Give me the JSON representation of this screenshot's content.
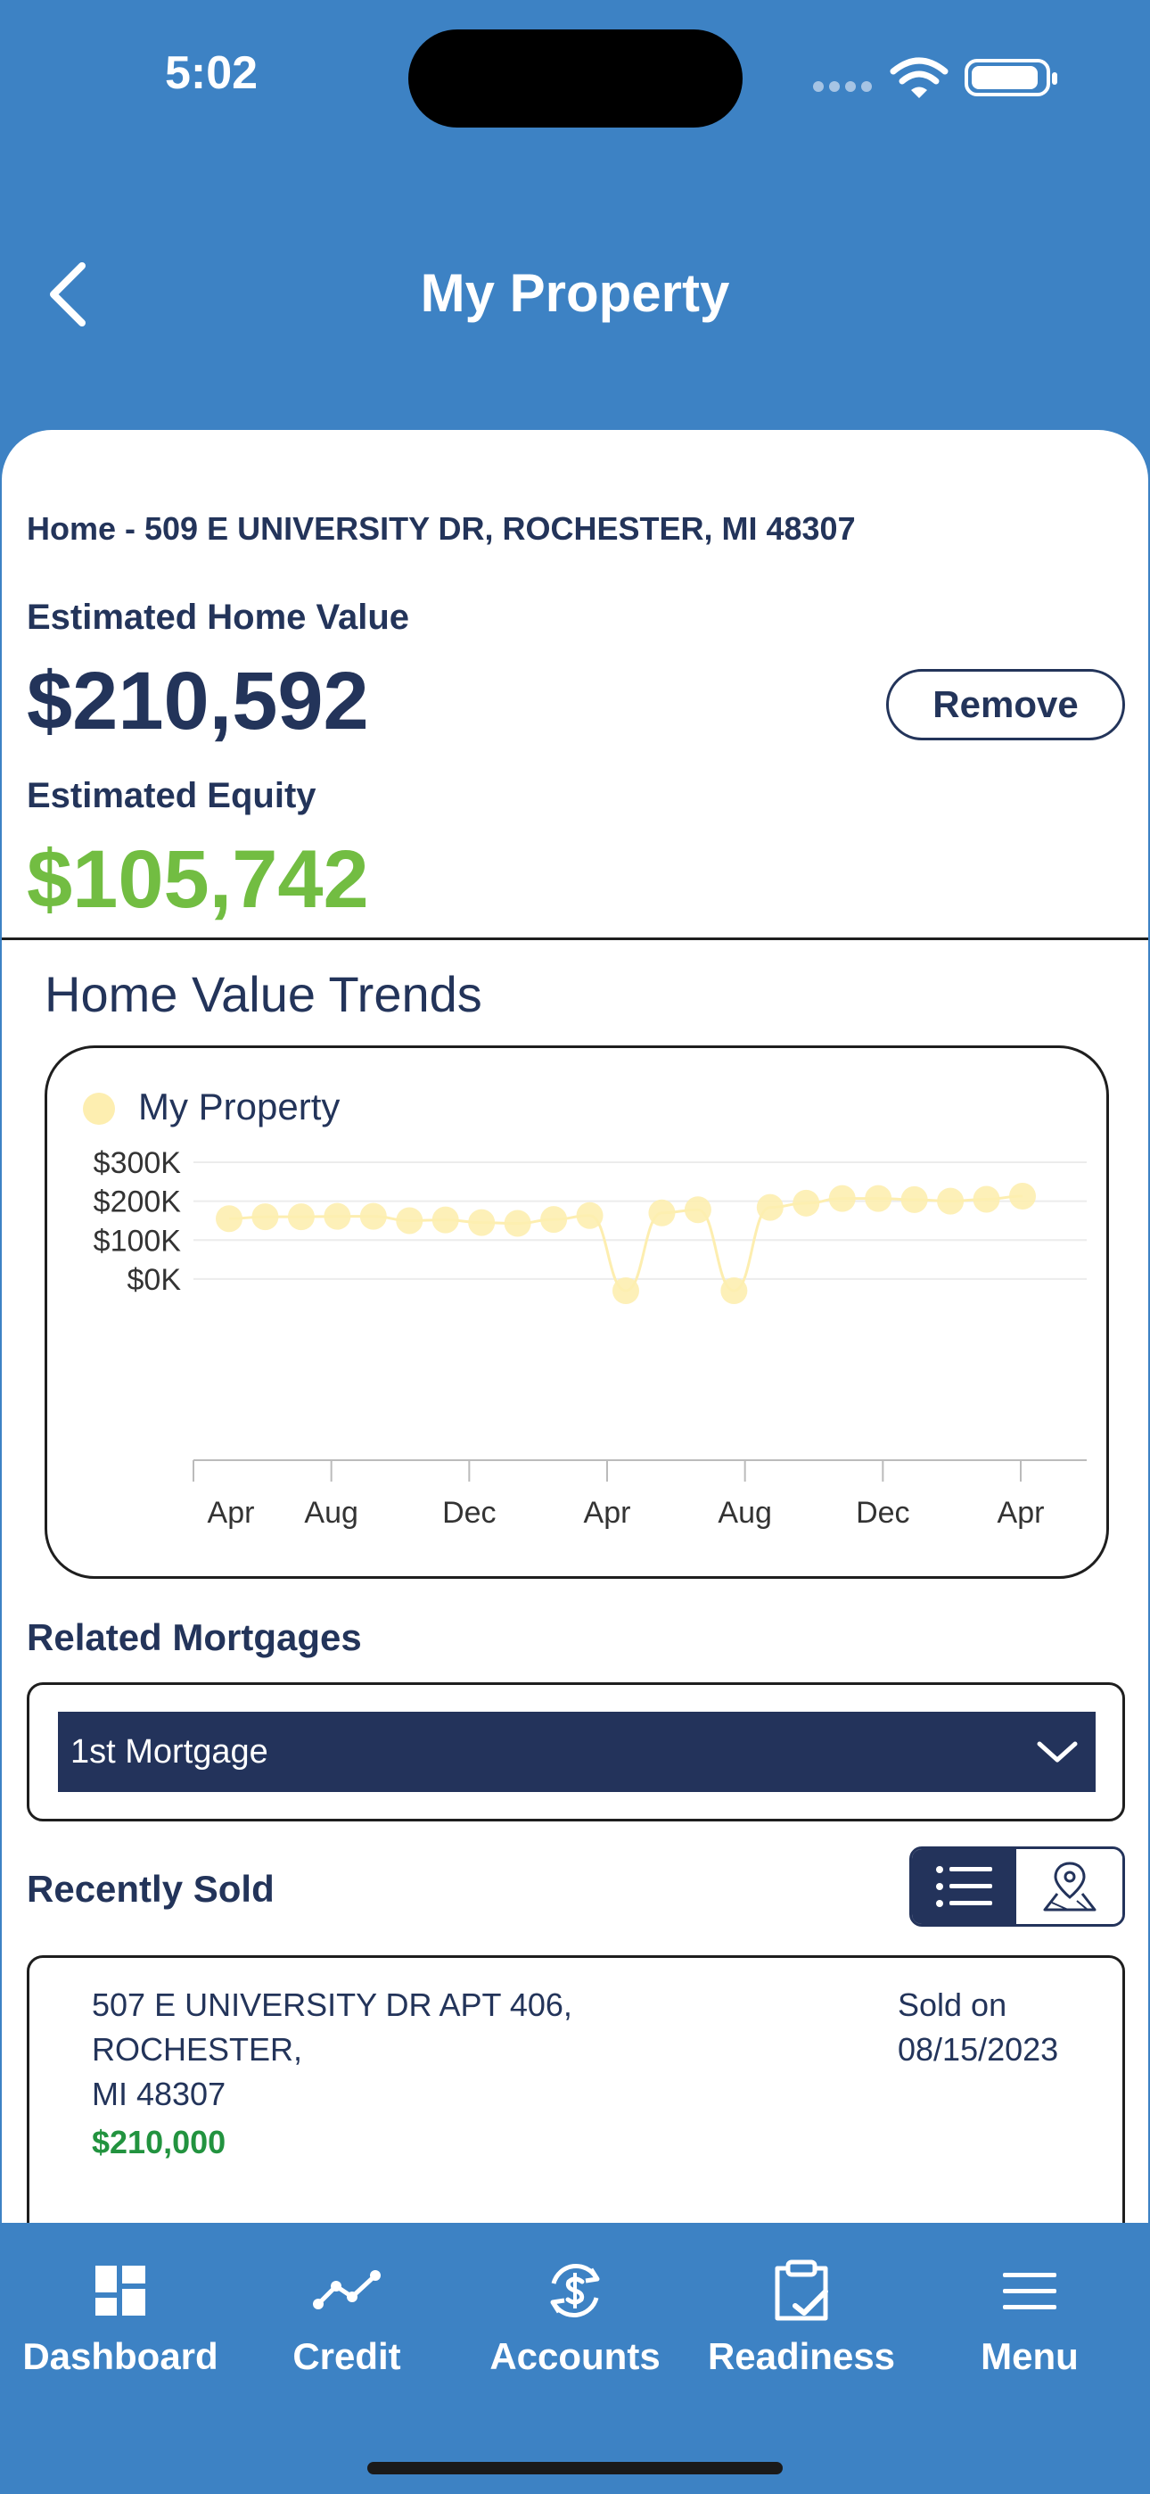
{
  "status_bar": {
    "time": "5:02"
  },
  "header": {
    "title": "My Property"
  },
  "property": {
    "address": "Home - 509 E UNIVERSITY DR, ROCHESTER, MI 48307",
    "estimated_home_value_label": "Estimated Home Value",
    "estimated_home_value": "$210,592",
    "remove_label": "Remove",
    "estimated_equity_label": "Estimated Equity",
    "estimated_equity": "$105,742"
  },
  "trends": {
    "title": "Home Value Trends"
  },
  "chart_data": {
    "type": "line",
    "title": "",
    "xlabel": "",
    "ylabel": "",
    "legend": "top-left",
    "grid": true,
    "x_tick_labels": [
      "Apr",
      "Aug",
      "Dec",
      "Apr",
      "Aug",
      "Dec",
      "Apr"
    ],
    "y_tick_labels": [
      "$300K",
      "$200K",
      "$100K",
      "$0K"
    ],
    "y_ticks": [
      300000,
      200000,
      100000,
      0
    ],
    "ylim": [
      -30000,
      300000
    ],
    "series": [
      {
        "name": "My Property",
        "color": "#fdeeb0",
        "values": [
          155000,
          160000,
          160000,
          161000,
          161000,
          150000,
          152000,
          145000,
          143000,
          153000,
          163000,
          -30000,
          170000,
          178000,
          -30000,
          184000,
          195000,
          207000,
          207000,
          204000,
          200000,
          205000,
          213000
        ]
      }
    ]
  },
  "mortgages": {
    "label": "Related Mortgages",
    "selected": "1st Mortgage"
  },
  "recently_sold": {
    "label": "Recently Sold",
    "items": [
      {
        "address_line1": "507 E UNIVERSITY DR APT 406,",
        "address_line2": "ROCHESTER,",
        "address_line3": "MI 48307",
        "sold_on_label": "Sold on",
        "sold_date": "08/15/2023",
        "price": "$210,000"
      }
    ]
  },
  "tabs": [
    {
      "label": "Dashboard",
      "icon": "dashboard-icon"
    },
    {
      "label": "Credit",
      "icon": "credit-trend-icon"
    },
    {
      "label": "Accounts",
      "icon": "accounts-dollar-icon"
    },
    {
      "label": "Readiness",
      "icon": "readiness-clipboard-icon"
    },
    {
      "label": "Menu",
      "icon": "menu-icon"
    }
  ]
}
